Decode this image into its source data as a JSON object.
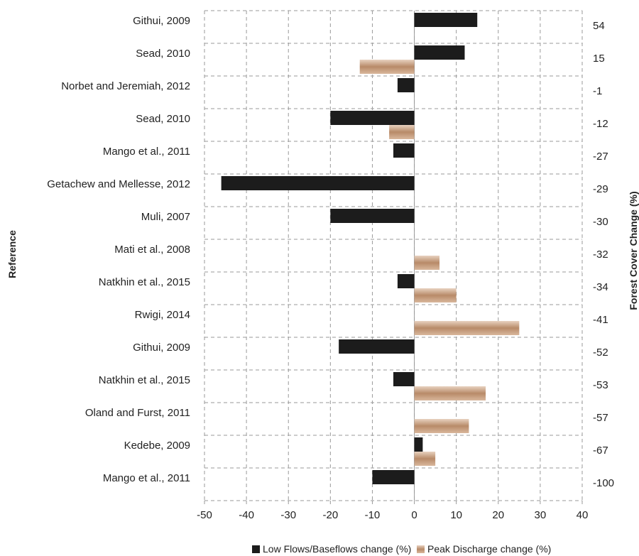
{
  "chart_data": {
    "type": "bar",
    "orientation": "horizontal",
    "title": "",
    "xlabel": "",
    "ylabel": "Reference",
    "y2label": "Forest Cover Change (%)",
    "xlim": [
      -50,
      40
    ],
    "xticks": [
      -50,
      -40,
      -30,
      -20,
      -10,
      0,
      10,
      20,
      30,
      40
    ],
    "grid": true,
    "legend_position": "bottom",
    "categories": [
      "Githui, 2009",
      "Sead, 2010",
      "Norbet and Jeremiah, 2012",
      "Sead, 2010",
      "Mango et al., 2011",
      "Getachew and Mellesse, 2012",
      "Muli, 2007",
      "Mati et al., 2008",
      "Natkhin et al., 2015",
      "Rwigi, 2014",
      "Githui, 2009",
      "Natkhin et al., 2015",
      "Oland and Furst, 2011",
      "Kedebe, 2009",
      "Mango et al., 2011"
    ],
    "forest_cover_change": [
      "54",
      "15",
      "-1",
      "-12",
      "-27",
      "-29",
      "-30",
      "-32",
      "-34",
      "-41",
      "-52",
      "-53",
      "-57",
      "-67",
      "-100"
    ],
    "series": [
      {
        "name": "Low Flows/Baseflows change (%)",
        "color": "#1c1c1c",
        "values": [
          15,
          12,
          -4,
          -20,
          -5,
          -46,
          -20,
          null,
          -4,
          null,
          -18,
          -5,
          null,
          2,
          -10
        ]
      },
      {
        "name": "Peak Discharge change (%)",
        "color": "#c89d7e",
        "values": [
          null,
          -13,
          null,
          -6,
          null,
          null,
          null,
          6,
          10,
          25,
          null,
          17,
          13,
          5,
          null
        ]
      }
    ]
  }
}
